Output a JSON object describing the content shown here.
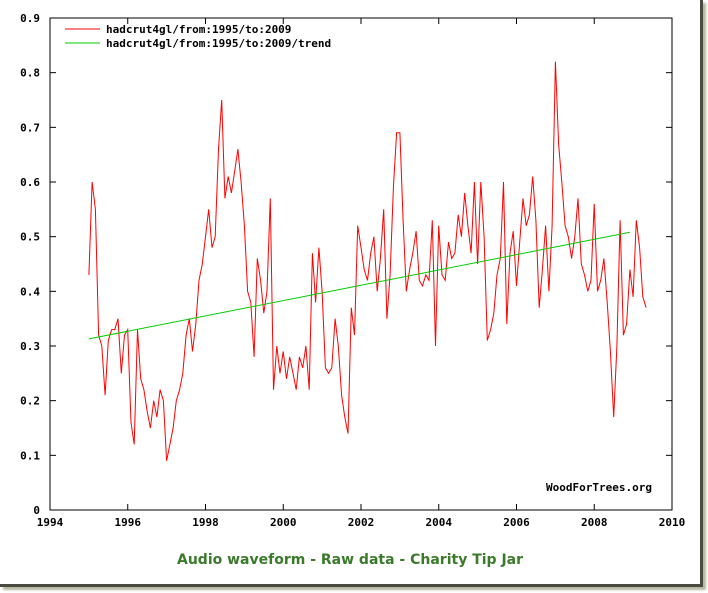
{
  "chart_data": {
    "type": "line",
    "title": "",
    "xlabel": "",
    "ylabel": "",
    "xlim": [
      1994,
      2010
    ],
    "ylim": [
      0,
      0.9
    ],
    "x_ticks": [
      "1994",
      "1996",
      "1998",
      "2000",
      "2002",
      "2004",
      "2006",
      "2008",
      "2010"
    ],
    "x_tick_values": [
      1994,
      1996,
      1998,
      2000,
      2002,
      2004,
      2006,
      2008,
      2010
    ],
    "y_ticks": [
      "0",
      "0.1",
      "0.2",
      "0.3",
      "0.4",
      "0.5",
      "0.6",
      "0.7",
      "0.8",
      "0.9"
    ],
    "y_tick_values": [
      0,
      0.1,
      0.2,
      0.3,
      0.4,
      0.5,
      0.6,
      0.7,
      0.8,
      0.9
    ],
    "grid": false,
    "legend_position": "top-left",
    "watermark": "WoodForTrees.org",
    "series": [
      {
        "name": "hadcrut4gl/from:1995/to:2009",
        "color": "#ff0000",
        "start": 1995.0,
        "step": 0.08333,
        "values": [
          0.43,
          0.6,
          0.55,
          0.32,
          0.3,
          0.21,
          0.31,
          0.33,
          0.33,
          0.35,
          0.25,
          0.32,
          0.33,
          0.16,
          0.12,
          0.33,
          0.24,
          0.22,
          0.18,
          0.15,
          0.2,
          0.17,
          0.22,
          0.2,
          0.09,
          0.12,
          0.15,
          0.2,
          0.22,
          0.25,
          0.32,
          0.35,
          0.29,
          0.34,
          0.42,
          0.45,
          0.5,
          0.55,
          0.48,
          0.5,
          0.66,
          0.75,
          0.57,
          0.61,
          0.58,
          0.62,
          0.66,
          0.6,
          0.52,
          0.4,
          0.38,
          0.28,
          0.46,
          0.42,
          0.36,
          0.4,
          0.57,
          0.22,
          0.3,
          0.25,
          0.29,
          0.24,
          0.28,
          0.25,
          0.22,
          0.28,
          0.26,
          0.3,
          0.22,
          0.47,
          0.38,
          0.48,
          0.4,
          0.26,
          0.25,
          0.26,
          0.35,
          0.3,
          0.21,
          0.17,
          0.14,
          0.37,
          0.32,
          0.52,
          0.48,
          0.44,
          0.42,
          0.47,
          0.5,
          0.4,
          0.46,
          0.55,
          0.35,
          0.43,
          0.59,
          0.69,
          0.69,
          0.53,
          0.4,
          0.44,
          0.47,
          0.51,
          0.42,
          0.41,
          0.43,
          0.42,
          0.53,
          0.3,
          0.52,
          0.43,
          0.42,
          0.49,
          0.46,
          0.47,
          0.54,
          0.5,
          0.58,
          0.52,
          0.47,
          0.6,
          0.45,
          0.6,
          0.5,
          0.31,
          0.33,
          0.36,
          0.43,
          0.46,
          0.6,
          0.34,
          0.47,
          0.51,
          0.41,
          0.49,
          0.57,
          0.52,
          0.54,
          0.61,
          0.53,
          0.37,
          0.44,
          0.52,
          0.4,
          0.52,
          0.82,
          0.67,
          0.6,
          0.52,
          0.5,
          0.46,
          0.5,
          0.57,
          0.45,
          0.43,
          0.4,
          0.42,
          0.56,
          0.4,
          0.42,
          0.46,
          0.38,
          0.29,
          0.17,
          0.3,
          0.53,
          0.32,
          0.34,
          0.44,
          0.39,
          0.53,
          0.48,
          0.39,
          0.37
        ]
      },
      {
        "name": "hadcrut4gl/from:1995/to:2009/trend",
        "color": "#00cc00",
        "x": [
          1995.0,
          2008.917
        ],
        "values": [
          0.313,
          0.508
        ]
      }
    ]
  },
  "caption": {
    "link1": "Audio waveform",
    "sep1": " - ",
    "link2": "Raw data",
    "sep2": " - ",
    "link3": "Charity Tip Jar"
  }
}
